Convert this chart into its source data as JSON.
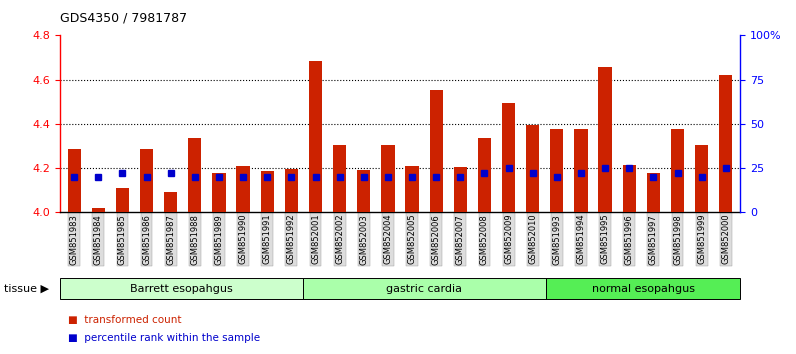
{
  "title": "GDS4350 / 7981787",
  "samples": [
    "GSM851983",
    "GSM851984",
    "GSM851985",
    "GSM851986",
    "GSM851987",
    "GSM851988",
    "GSM851989",
    "GSM851990",
    "GSM851991",
    "GSM851992",
    "GSM852001",
    "GSM852002",
    "GSM852003",
    "GSM852004",
    "GSM852005",
    "GSM852006",
    "GSM852007",
    "GSM852008",
    "GSM852009",
    "GSM852010",
    "GSM851993",
    "GSM851994",
    "GSM851995",
    "GSM851996",
    "GSM851997",
    "GSM851998",
    "GSM851999",
    "GSM852000"
  ],
  "transformed_count": [
    4.285,
    4.02,
    4.11,
    4.285,
    4.09,
    4.335,
    4.18,
    4.21,
    4.185,
    4.195,
    4.685,
    4.305,
    4.19,
    4.305,
    4.21,
    4.555,
    4.205,
    4.335,
    4.495,
    4.395,
    4.375,
    4.375,
    4.655,
    4.215,
    4.18,
    4.375,
    4.305,
    4.62
  ],
  "percentile_rank": [
    20,
    20,
    22,
    20,
    22,
    20,
    20,
    20,
    20,
    20,
    20,
    20,
    20,
    20,
    20,
    20,
    20,
    22,
    25,
    22,
    20,
    22,
    25,
    25,
    20,
    22,
    20,
    25
  ],
  "tissues": [
    {
      "label": "Barrett esopahgus",
      "start": 0,
      "end": 10,
      "color": "#ccffcc"
    },
    {
      "label": "gastric cardia",
      "start": 10,
      "end": 20,
      "color": "#aaffaa"
    },
    {
      "label": "normal esopahgus",
      "start": 20,
      "end": 28,
      "color": "#55ee55"
    }
  ],
  "ylim_left": [
    4.0,
    4.8
  ],
  "ylim_right": [
    0,
    100
  ],
  "yticks_left": [
    4.0,
    4.2,
    4.4,
    4.6,
    4.8
  ],
  "yticks_right": [
    0,
    25,
    50,
    75,
    100
  ],
  "bar_color": "#cc2200",
  "percentile_color": "#0000cc",
  "grid_lines": [
    4.2,
    4.4,
    4.6
  ]
}
